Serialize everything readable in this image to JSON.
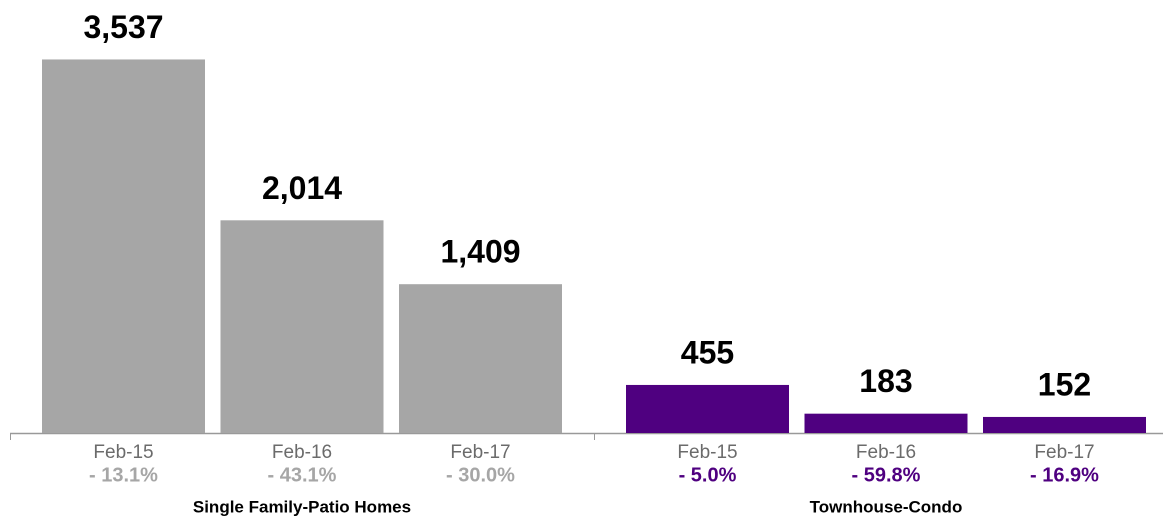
{
  "chart_data": [
    {
      "type": "bar",
      "title": "Single Family-Patio Homes",
      "color": "#a6a6a6",
      "categories": [
        "Feb-15",
        "Feb-16",
        "Feb-17"
      ],
      "values": [
        3537,
        2014,
        1409
      ],
      "value_labels": [
        "3,537",
        "2,014",
        "1,409"
      ],
      "changes": [
        -13.1,
        -43.1,
        -30.0
      ],
      "change_labels": [
        "- 13.1%",
        "- 43.1%",
        "- 30.0%"
      ],
      "ylim": [
        0,
        4100
      ]
    },
    {
      "type": "bar",
      "title": "Townhouse-Condo",
      "color": "#4f0080",
      "categories": [
        "Feb-15",
        "Feb-16",
        "Feb-17"
      ],
      "values": [
        455,
        183,
        152
      ],
      "value_labels": [
        "455",
        "183",
        "152"
      ],
      "changes": [
        -5.0,
        -59.8,
        -16.9
      ],
      "change_labels": [
        "- 5.0%",
        "- 59.8%",
        "- 16.9%"
      ],
      "ylim": [
        0,
        4100
      ]
    }
  ]
}
